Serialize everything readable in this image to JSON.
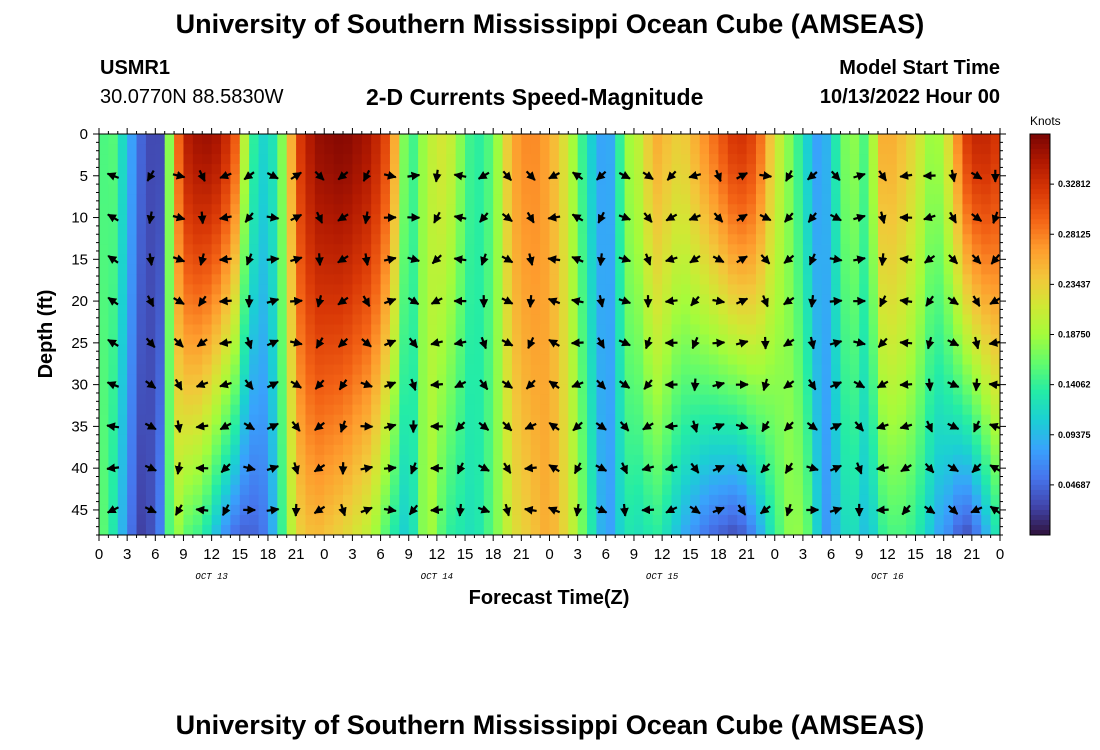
{
  "header": {
    "title": "University of Southern Mississippi Ocean Cube (AMSEAS)",
    "station_id": "USMR1",
    "coordinates": "30.0770N  88.5830W",
    "chart_title": "2-D Currents Speed-Magnitude",
    "model_label": "Model Start Time",
    "model_time": "10/13/2022 Hour 00"
  },
  "footer": {
    "title": "University of Southern Mississippi Ocean Cube (AMSEAS)"
  },
  "chart_data": {
    "type": "heatmap",
    "title": "2-D Currents Speed-Magnitude",
    "xlabel": "Forecast Time(Z)",
    "ylabel": "Depth (ft)",
    "x_tick_labels": [
      "0",
      "3",
      "6",
      "9",
      "12",
      "15",
      "18",
      "21",
      "0",
      "3",
      "6",
      "9",
      "12",
      "15",
      "18",
      "21",
      "0",
      "3",
      "6",
      "9",
      "12",
      "15",
      "18",
      "21",
      "0",
      "3",
      "6",
      "9",
      "12",
      "15",
      "18",
      "21",
      "0"
    ],
    "x_range_hours": [
      0,
      96
    ],
    "date_labels": [
      {
        "label": "OCT 13",
        "hour": 12
      },
      {
        "label": "OCT 14",
        "hour": 36
      },
      {
        "label": "OCT 15",
        "hour": 60
      },
      {
        "label": "OCT 16",
        "hour": 84
      }
    ],
    "y_tick_labels": [
      "0",
      "5",
      "10",
      "15",
      "20",
      "25",
      "30",
      "35",
      "40",
      "45"
    ],
    "y_ticks": [
      0,
      5,
      10,
      15,
      20,
      25,
      30,
      35,
      40,
      45
    ],
    "y_range": [
      0,
      48
    ],
    "y_inverted": true,
    "colorbar": {
      "unit": "Knots",
      "tick_labels": [
        "0.04687",
        "0.09375",
        "0.14062",
        "0.18750",
        "0.23437",
        "0.28125",
        "0.32812"
      ],
      "tick_values": [
        0.04687,
        0.09375,
        0.14062,
        0.1875,
        0.23437,
        0.28125,
        0.32812
      ],
      "range": [
        0.0,
        0.375
      ],
      "colors": [
        "#30123b",
        "#4145ab",
        "#4675ed",
        "#39a2fc",
        "#1bcfd4",
        "#24eca6",
        "#61fc6c",
        "#a4fc3b",
        "#d1e834",
        "#f3c63a",
        "#fe9b2d",
        "#f36315",
        "#d93806",
        "#b11901",
        "#7a0403"
      ]
    },
    "speed_profile": {
      "hours": [
        0,
        1.5,
        4,
        5,
        6.5,
        8,
        9,
        11,
        13,
        14.5,
        16,
        18,
        20,
        21,
        23,
        26,
        29,
        31,
        33,
        35,
        37,
        40,
        42,
        44,
        46,
        48,
        50,
        52,
        54,
        55,
        56,
        58,
        59,
        60,
        62,
        65,
        68,
        70,
        72,
        74,
        76,
        77,
        78,
        80,
        82,
        83,
        84,
        86,
        88,
        89,
        91,
        92,
        93,
        94,
        96
      ],
      "surface": [
        0.15,
        0.155,
        0.06,
        0.03,
        0.03,
        0.25,
        0.34,
        0.36,
        0.35,
        0.3,
        0.15,
        0.1,
        0.2,
        0.31,
        0.36,
        0.37,
        0.35,
        0.3,
        0.13,
        0.2,
        0.22,
        0.13,
        0.16,
        0.26,
        0.28,
        0.26,
        0.21,
        0.12,
        0.07,
        0.1,
        0.18,
        0.21,
        0.26,
        0.25,
        0.23,
        0.28,
        0.33,
        0.31,
        0.22,
        0.16,
        0.09,
        0.07,
        0.11,
        0.19,
        0.14,
        0.25,
        0.26,
        0.24,
        0.2,
        0.17,
        0.24,
        0.31,
        0.33,
        0.34,
        0.32
      ],
      "bottom": [
        0.17,
        0.13,
        0.03,
        0.02,
        0.06,
        0.2,
        0.16,
        0.14,
        0.08,
        0.05,
        0.04,
        0.06,
        0.17,
        0.23,
        0.25,
        0.23,
        0.2,
        0.14,
        0.1,
        0.2,
        0.14,
        0.12,
        0.16,
        0.22,
        0.24,
        0.26,
        0.22,
        0.15,
        0.07,
        0.09,
        0.13,
        0.12,
        0.14,
        0.13,
        0.09,
        0.05,
        0.03,
        0.07,
        0.14,
        0.19,
        0.15,
        0.07,
        0.08,
        0.13,
        0.09,
        0.13,
        0.15,
        0.15,
        0.12,
        0.09,
        0.06,
        0.03,
        0.04,
        0.07,
        0.14
      ]
    },
    "vector_grid": {
      "hours": [
        1.5,
        5.5,
        8.5,
        11,
        13.5,
        16,
        18.5,
        21,
        23.5,
        26,
        28.5,
        31,
        33.5,
        36,
        38.5,
        41,
        43.5,
        46,
        48.5,
        51,
        53.5,
        56,
        58.5,
        61,
        63.5,
        66,
        68.5,
        71,
        73.5,
        76,
        78.5,
        81,
        83.5,
        86,
        88.5,
        91,
        93.5,
        95.5
      ],
      "depths": [
        5,
        10,
        15,
        20,
        25,
        30,
        35,
        40,
        45
      ]
    }
  }
}
